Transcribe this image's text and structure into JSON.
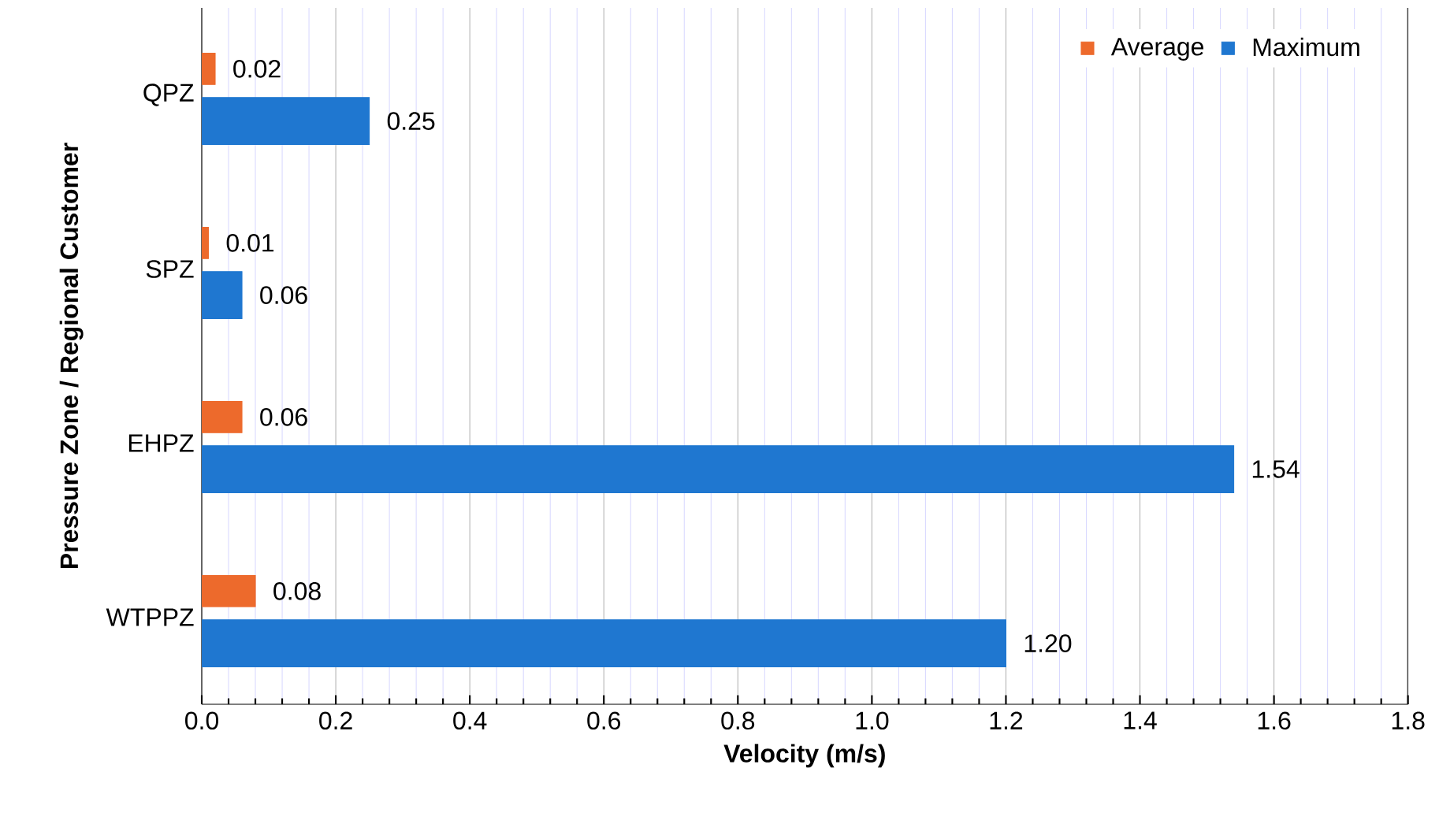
{
  "chart_data": {
    "type": "bar",
    "orientation": "horizontal",
    "xlabel": "Velocity (m/s)",
    "ylabel": "Pressure Zone / Regional Customer",
    "categories": [
      "QPZ",
      "SPZ",
      "EHPZ",
      "WTPPZ"
    ],
    "series": [
      {
        "name": "Average",
        "color": "#ed6a2c",
        "values": [
          0.02,
          0.01,
          0.06,
          0.08
        ],
        "value_labels": [
          "0.02",
          "0.01",
          "0.06",
          "0.08"
        ]
      },
      {
        "name": "Maximum",
        "color": "#1f77d0",
        "values": [
          0.25,
          0.06,
          1.54,
          1.2
        ],
        "value_labels": [
          "0.25",
          "0.06",
          "1.54",
          "1.20"
        ]
      }
    ],
    "xlim": [
      0,
      1.8
    ],
    "xticks": [
      {
        "value": 0,
        "label": "0.0"
      },
      {
        "value": 0.2,
        "label": "0.2"
      },
      {
        "value": 0.4,
        "label": "0.4"
      },
      {
        "value": 0.6,
        "label": "0.6"
      },
      {
        "value": 0.8,
        "label": "0.8"
      },
      {
        "value": 1.0,
        "label": "1.0"
      },
      {
        "value": 1.2,
        "label": "1.2"
      },
      {
        "value": 1.4,
        "label": "1.4"
      },
      {
        "value": 1.6,
        "label": "1.6"
      },
      {
        "value": 1.8,
        "label": "1.8"
      }
    ],
    "grid": "x",
    "legend": "top right"
  }
}
